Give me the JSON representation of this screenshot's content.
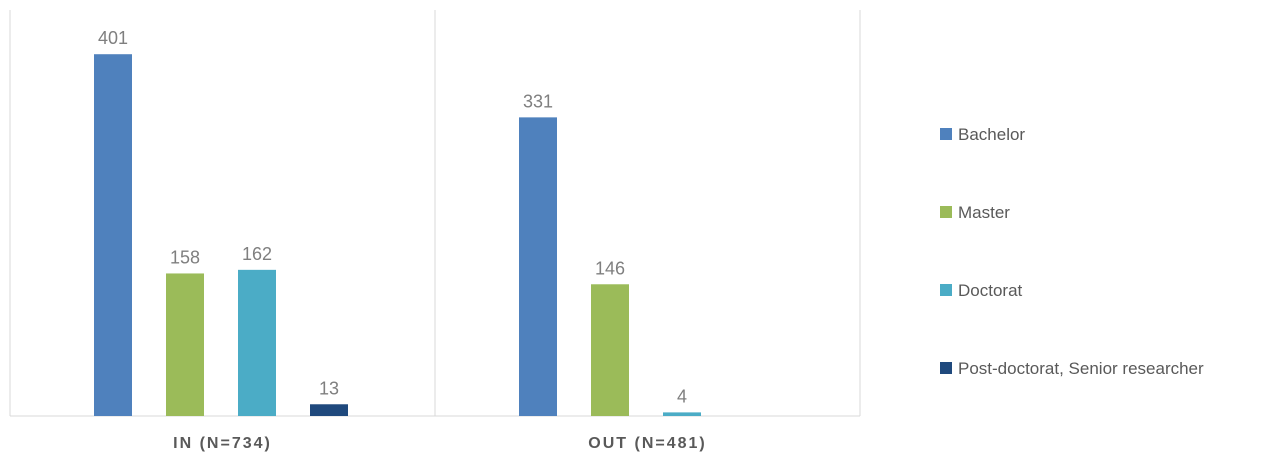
{
  "chart_data": {
    "type": "bar",
    "categories": [
      "IN (N=734)",
      "OUT (N=481)"
    ],
    "series": [
      {
        "name": "Bachelor",
        "values": [
          401,
          331
        ],
        "color": "#4f81bd"
      },
      {
        "name": "Master",
        "values": [
          158,
          146
        ],
        "color": "#9bbb59"
      },
      {
        "name": "Doctorat",
        "values": [
          162,
          4
        ],
        "color": "#4bacc6"
      },
      {
        "name": "Post-doctorat, Senior researcher",
        "values": [
          13,
          null
        ],
        "color": "#1f497d"
      }
    ],
    "data_labels": [
      [
        "401",
        "331"
      ],
      [
        "158",
        "146"
      ],
      [
        "162",
        "4"
      ],
      [
        "13",
        ""
      ]
    ],
    "ylim": [
      0,
      450
    ],
    "grid": false,
    "legend_position": "right",
    "category_dividers": true
  }
}
